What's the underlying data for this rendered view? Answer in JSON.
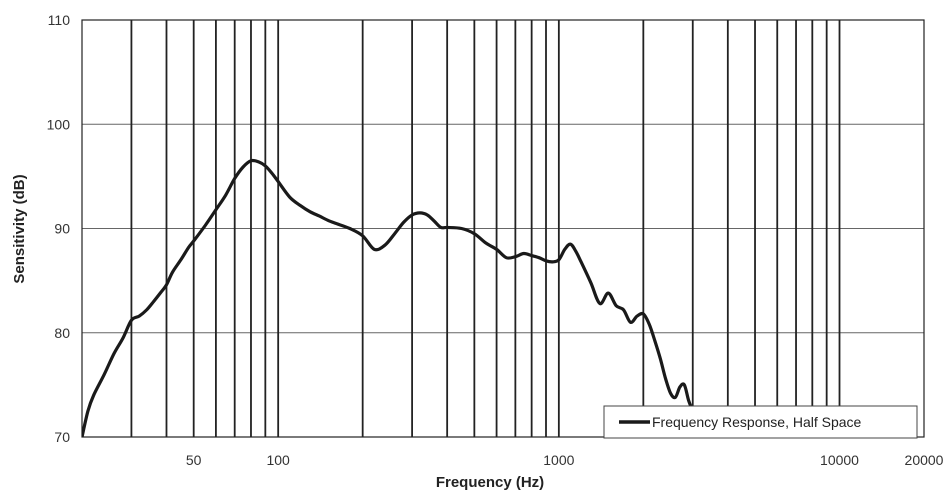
{
  "chart_data": {
    "type": "line",
    "xlabel": "Frequency (Hz)",
    "ylabel": "Sensitivity (dB)",
    "x_scale": "log",
    "xlim": [
      20,
      20000
    ],
    "ylim": [
      70,
      110
    ],
    "x_tick_labels": [
      {
        "value": 50,
        "label": "50"
      },
      {
        "value": 100,
        "label": "100"
      },
      {
        "value": 1000,
        "label": "1000"
      },
      {
        "value": 10000,
        "label": "10000"
      },
      {
        "value": 20000,
        "label": "20000"
      }
    ],
    "y_ticks": [
      70,
      80,
      90,
      100,
      110
    ],
    "x_gridlines": [
      30,
      40,
      50,
      60,
      70,
      80,
      90,
      100,
      200,
      300,
      400,
      500,
      600,
      700,
      800,
      900,
      1000,
      2000,
      3000,
      4000,
      5000,
      6000,
      7000,
      8000,
      9000,
      10000
    ],
    "grid": true,
    "legend_position": "bottom-right",
    "series": [
      {
        "name": "Frequency Response, Half Space",
        "color": "#1a1a1a",
        "x": [
          20,
          21,
          22,
          24,
          26,
          28,
          30,
          32,
          34,
          36,
          38,
          40,
          42,
          45,
          48,
          50,
          55,
          60,
          65,
          70,
          75,
          80,
          85,
          90,
          95,
          100,
          110,
          120,
          130,
          140,
          150,
          160,
          180,
          200,
          220,
          240,
          260,
          280,
          300,
          320,
          340,
          360,
          380,
          400,
          450,
          500,
          550,
          600,
          650,
          700,
          750,
          800,
          850,
          900,
          950,
          1000,
          1050,
          1100,
          1150,
          1200,
          1300,
          1400,
          1500,
          1600,
          1700,
          1800,
          1900,
          2000,
          2100,
          2200,
          2300,
          2400,
          2500,
          2600,
          2700,
          2800,
          2900,
          3000,
          3100
        ],
        "y": [
          70.0,
          72.5,
          74.0,
          76.0,
          78.0,
          79.5,
          81.2,
          81.6,
          82.2,
          83.0,
          83.8,
          84.6,
          85.8,
          87.0,
          88.2,
          88.8,
          90.3,
          91.8,
          93.2,
          94.8,
          95.9,
          96.5,
          96.4,
          96.0,
          95.3,
          94.5,
          93.0,
          92.2,
          91.6,
          91.2,
          90.8,
          90.5,
          90.0,
          89.3,
          88.0,
          88.4,
          89.5,
          90.6,
          91.3,
          91.5,
          91.3,
          90.7,
          90.1,
          90.1,
          90.0,
          89.5,
          88.6,
          88.0,
          87.2,
          87.3,
          87.6,
          87.4,
          87.2,
          86.9,
          86.8,
          87.0,
          88.0,
          88.5,
          87.8,
          86.8,
          84.8,
          82.8,
          83.8,
          82.6,
          82.2,
          81.0,
          81.6,
          81.8,
          80.8,
          79.2,
          77.5,
          75.6,
          74.2,
          73.8,
          74.8,
          75.0,
          73.5,
          72.5,
          71.5
        ]
      }
    ]
  }
}
